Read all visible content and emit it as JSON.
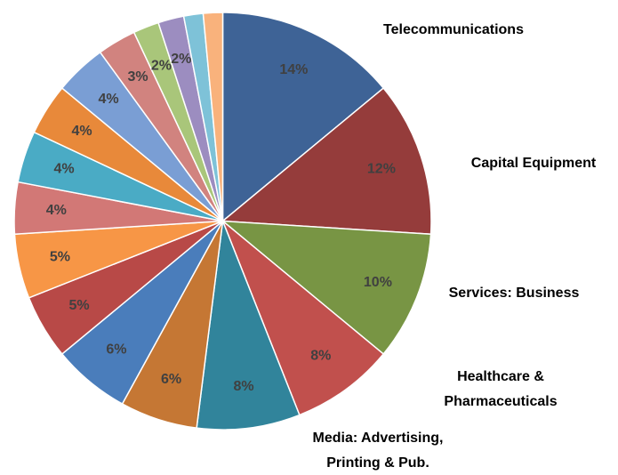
{
  "chart_data": {
    "type": "pie",
    "categories": [
      "Telecommunications",
      "Capital Equipment",
      "Services: Business",
      "Healthcare & Pharmaceuticals",
      "Media: Advertising, Printing & Pub.",
      null,
      null,
      null,
      null,
      null,
      null,
      null,
      null,
      null,
      null,
      null,
      null,
      null
    ],
    "values": [
      14,
      12,
      10,
      8,
      8,
      6,
      6,
      5,
      5,
      4,
      4,
      4,
      4,
      3,
      2,
      2,
      1.5,
      1.5
    ],
    "value_labels": [
      "14%",
      "12%",
      "10%",
      "8%",
      "8%",
      "6%",
      "6%",
      "5%",
      "5%",
      "4%",
      "4%",
      "4%",
      "4%",
      "3%",
      "2%",
      "2%",
      null,
      null
    ],
    "colors": [
      "#3e6396",
      "#953c3b",
      "#789544",
      "#c1504d",
      "#31849b",
      "#c57734",
      "#4a7dbb",
      "#b84947",
      "#f79646",
      "#d27876",
      "#4aabc5",
      "#e8893a",
      "#7a9ed4",
      "#d1837f",
      "#a9c67a",
      "#9c8dc0",
      "#7ec2d8",
      "#f9b27c"
    ]
  }
}
